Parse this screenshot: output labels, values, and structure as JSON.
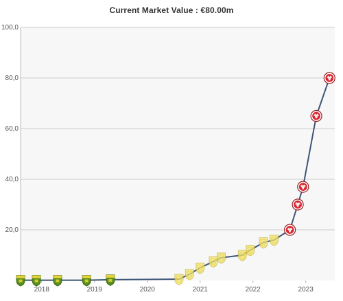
{
  "chart_data": {
    "type": "line",
    "title": "Current Market Value : €80.00m",
    "xlabel": "",
    "ylabel": "",
    "x_ticks": [
      "2018",
      "2019",
      "2020",
      "2021",
      "2022",
      "2023"
    ],
    "y_ticks": [
      "20,0",
      "40,0",
      "60,0",
      "80,0",
      "100,0"
    ],
    "xlim": [
      2017.6,
      2023.55
    ],
    "ylim": [
      0,
      100
    ],
    "grid": true,
    "series": [
      {
        "points": [
          {
            "x": 2017.6,
            "y": 0.1,
            "club": "green-yellow-crest"
          },
          {
            "x": 2017.9,
            "y": 0.1,
            "club": "green-yellow-crest"
          },
          {
            "x": 2018.3,
            "y": 0.1,
            "club": "green-yellow-crest"
          },
          {
            "x": 2018.85,
            "y": 0.1,
            "club": "green-yellow-crest"
          },
          {
            "x": 2019.3,
            "y": 0.3,
            "club": "green-yellow-crest"
          },
          {
            "x": 2020.6,
            "y": 0.5,
            "club": "yellow-crest"
          },
          {
            "x": 2020.8,
            "y": 2.5,
            "club": "yellow-crest"
          },
          {
            "x": 2021.0,
            "y": 5.0,
            "club": "yellow-crest"
          },
          {
            "x": 2021.25,
            "y": 7.5,
            "club": "yellow-crest"
          },
          {
            "x": 2021.4,
            "y": 9.0,
            "club": "yellow-crest"
          },
          {
            "x": 2021.8,
            "y": 10.0,
            "club": "yellow-crest"
          },
          {
            "x": 2021.95,
            "y": 12.0,
            "club": "yellow-crest"
          },
          {
            "x": 2022.2,
            "y": 15.0,
            "club": "yellow-crest"
          },
          {
            "x": 2022.4,
            "y": 16.0,
            "club": "yellow-crest"
          },
          {
            "x": 2022.7,
            "y": 20.0,
            "club": "eagle-crest"
          },
          {
            "x": 2022.85,
            "y": 30.0,
            "club": "eagle-crest"
          },
          {
            "x": 2022.95,
            "y": 37.0,
            "club": "eagle-crest"
          },
          {
            "x": 2023.2,
            "y": 65.0,
            "club": "eagle-crest"
          },
          {
            "x": 2023.45,
            "y": 80.0,
            "club": "eagle-crest"
          }
        ]
      }
    ]
  },
  "colors": {
    "line": "#3d5577",
    "grid": "#cccccc",
    "plot_bg": "#f7f7f7",
    "green-yellow-crest": "#5a8f1c",
    "yellow-crest": "#f1e26a",
    "eagle-crest": "#d9252f"
  }
}
